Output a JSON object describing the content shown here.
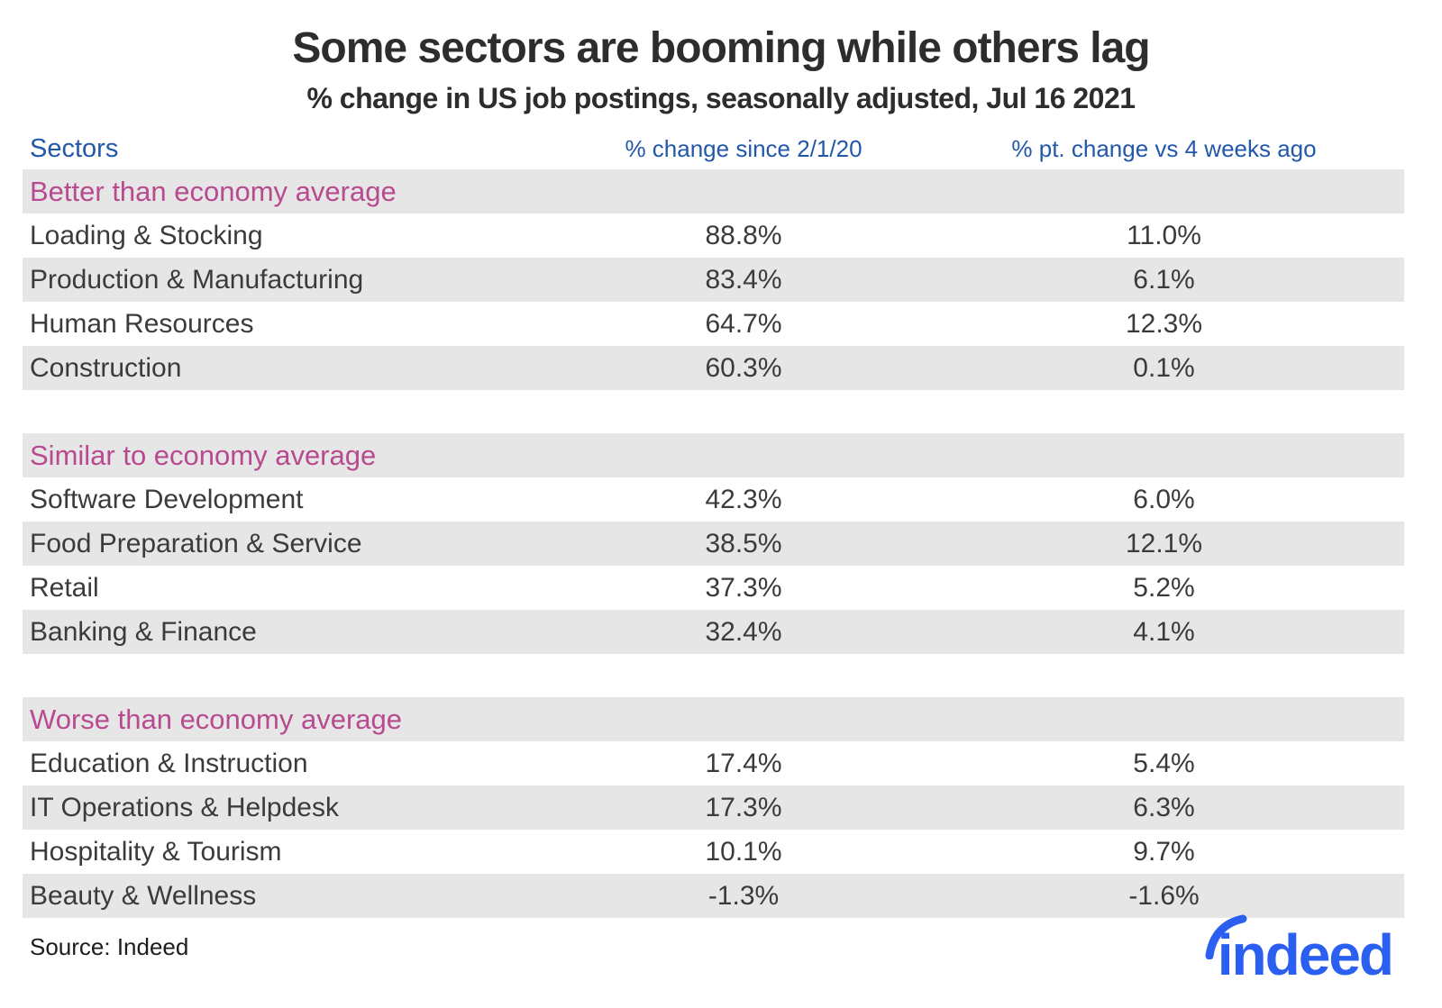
{
  "title": "Some sectors are booming while others lag",
  "subtitle": "% change in US job postings, seasonally adjusted, Jul 16 2021",
  "source": "Source: Indeed",
  "logo_text": "indeed",
  "colors": {
    "header_blue": "#2257a9",
    "section_pink": "#b84a90",
    "row_stripe_gray": "#e7e6e6",
    "title_dark": "#2d2d2d",
    "logo_blue": "#2a5ff0"
  },
  "chart_data": {
    "type": "table",
    "title": "Some sectors are booming while others lag",
    "subtitle": "% change in US job postings, seasonally adjusted, Jul 16 2021",
    "legend_position": "none",
    "grid": "row-stripes",
    "columns": [
      "Sectors",
      "% change since 2/1/20",
      "% pt. change vs 4 weeks ago"
    ],
    "sections": [
      {
        "label": "Better than economy average",
        "rows": [
          {
            "sector": "Loading & Stocking",
            "change_since_2_1_20": "88.8%",
            "pt_change_vs_4_weeks_ago": "11.0%"
          },
          {
            "sector": "Production & Manufacturing",
            "change_since_2_1_20": "83.4%",
            "pt_change_vs_4_weeks_ago": "6.1%"
          },
          {
            "sector": "Human Resources",
            "change_since_2_1_20": "64.7%",
            "pt_change_vs_4_weeks_ago": "12.3%"
          },
          {
            "sector": "Construction",
            "change_since_2_1_20": "60.3%",
            "pt_change_vs_4_weeks_ago": "0.1%"
          }
        ]
      },
      {
        "label": "Similar to economy average",
        "rows": [
          {
            "sector": "Software Development",
            "change_since_2_1_20": "42.3%",
            "pt_change_vs_4_weeks_ago": "6.0%"
          },
          {
            "sector": "Food Preparation & Service",
            "change_since_2_1_20": "38.5%",
            "pt_change_vs_4_weeks_ago": "12.1%"
          },
          {
            "sector": "Retail",
            "change_since_2_1_20": "37.3%",
            "pt_change_vs_4_weeks_ago": "5.2%"
          },
          {
            "sector": "Banking & Finance",
            "change_since_2_1_20": "32.4%",
            "pt_change_vs_4_weeks_ago": "4.1%"
          }
        ]
      },
      {
        "label": "Worse than economy average",
        "rows": [
          {
            "sector": "Education & Instruction",
            "change_since_2_1_20": "17.4%",
            "pt_change_vs_4_weeks_ago": "5.4%"
          },
          {
            "sector": "IT Operations & Helpdesk",
            "change_since_2_1_20": "17.3%",
            "pt_change_vs_4_weeks_ago": "6.3%"
          },
          {
            "sector": "Hospitality & Tourism",
            "change_since_2_1_20": "10.1%",
            "pt_change_vs_4_weeks_ago": "9.7%"
          },
          {
            "sector": "Beauty & Wellness",
            "change_since_2_1_20": "-1.3%",
            "pt_change_vs_4_weeks_ago": "-1.6%"
          }
        ]
      }
    ]
  }
}
